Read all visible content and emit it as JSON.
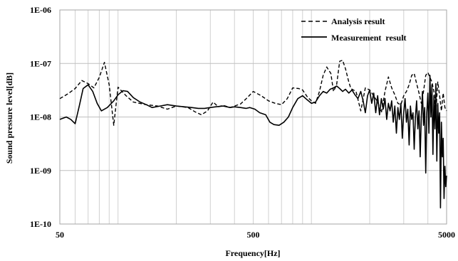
{
  "chart_data": {
    "type": "line",
    "title": "",
    "xlabel": "Frequency[Hz]",
    "ylabel": "Sound pressure level[dB]",
    "xscale": "log",
    "yscale": "log",
    "xlim": [
      50,
      5000
    ],
    "ylim": [
      1e-10,
      1e-06
    ],
    "x_ticks": [
      {
        "value": 50,
        "label": "50"
      },
      {
        "value": 500,
        "label": "500"
      },
      {
        "value": 5000,
        "label": "5000"
      }
    ],
    "y_ticks": [
      {
        "value": 1e-06,
        "label": "1E-06"
      },
      {
        "value": 1e-07,
        "label": "1E-07"
      },
      {
        "value": 1e-08,
        "label": "1E-08"
      },
      {
        "value": 1e-09,
        "label": "1E-09"
      },
      {
        "value": 1e-10,
        "label": "1E-10"
      }
    ],
    "x_gridlines": [
      60,
      70,
      80,
      90,
      100,
      200,
      300,
      400,
      500,
      600,
      700,
      800,
      900,
      1000,
      2000,
      3000,
      4000,
      5000
    ],
    "grid": true,
    "legend_position": "top-right",
    "series": [
      {
        "name": "Analysis result",
        "style": "dashed",
        "color": "#000000",
        "points": [
          [
            50,
            2.2e-08
          ],
          [
            55,
            2.7e-08
          ],
          [
            60,
            3.4e-08
          ],
          [
            65,
            4.8e-08
          ],
          [
            70,
            4.2e-08
          ],
          [
            75,
            3.5e-08
          ],
          [
            80,
            5.5e-08
          ],
          [
            85,
            1.05e-07
          ],
          [
            90,
            4e-08
          ],
          [
            95,
            7e-09
          ],
          [
            100,
            3.6e-08
          ],
          [
            110,
            2.5e-08
          ],
          [
            120,
            1.9e-08
          ],
          [
            140,
            1.7e-08
          ],
          [
            160,
            1.6e-08
          ],
          [
            180,
            1.4e-08
          ],
          [
            200,
            1.6e-08
          ],
          [
            230,
            1.5e-08
          ],
          [
            250,
            1.25e-08
          ],
          [
            270,
            1.1e-08
          ],
          [
            290,
            1.3e-08
          ],
          [
            310,
            1.9e-08
          ],
          [
            330,
            1.55e-08
          ],
          [
            350,
            1.65e-08
          ],
          [
            380,
            1.5e-08
          ],
          [
            400,
            1.6e-08
          ],
          [
            430,
            1.75e-08
          ],
          [
            460,
            2.2e-08
          ],
          [
            500,
            3e-08
          ],
          [
            550,
            2.5e-08
          ],
          [
            600,
            2e-08
          ],
          [
            650,
            1.8e-08
          ],
          [
            700,
            1.7e-08
          ],
          [
            750,
            2.2e-08
          ],
          [
            800,
            3.5e-08
          ],
          [
            860,
            3.4e-08
          ],
          [
            900,
            3.2e-08
          ],
          [
            950,
            2.4e-08
          ],
          [
            1000,
            2e-08
          ],
          [
            1050,
            1.8e-08
          ],
          [
            1100,
            3e-08
          ],
          [
            1150,
            6e-08
          ],
          [
            1200,
            8.6e-08
          ],
          [
            1260,
            6.5e-08
          ],
          [
            1300,
            3e-08
          ],
          [
            1350,
            4e-08
          ],
          [
            1400,
            1.1e-07
          ],
          [
            1450,
            1.15e-07
          ],
          [
            1500,
            8e-08
          ],
          [
            1560,
            4.5e-08
          ],
          [
            1600,
            3.4e-08
          ],
          [
            1700,
            3e-08
          ],
          [
            1800,
            1.3e-08
          ],
          [
            1900,
            3.5e-08
          ],
          [
            2000,
            3.2e-08
          ],
          [
            2100,
            2.5e-08
          ],
          [
            2200,
            1.9e-08
          ],
          [
            2300,
            1.2e-08
          ],
          [
            2400,
            3e-08
          ],
          [
            2500,
            5.6e-08
          ],
          [
            2600,
            3.5e-08
          ],
          [
            2700,
            2.6e-08
          ],
          [
            2800,
            1.8e-08
          ],
          [
            2900,
            1.7e-08
          ],
          [
            3000,
            2.5e-08
          ],
          [
            3100,
            3e-08
          ],
          [
            3200,
            4e-08
          ],
          [
            3300,
            6e-08
          ],
          [
            3400,
            6.5e-08
          ],
          [
            3500,
            4.2e-08
          ],
          [
            3600,
            2.8e-08
          ],
          [
            3700,
            1.8e-08
          ],
          [
            3800,
            3e-08
          ],
          [
            3900,
            6e-08
          ],
          [
            4000,
            6.8e-08
          ],
          [
            4100,
            5.5e-08
          ],
          [
            4200,
            4.5e-08
          ],
          [
            4300,
            3e-08
          ],
          [
            4400,
            1.2e-08
          ],
          [
            4500,
            4.5e-08
          ],
          [
            4600,
            2.5e-08
          ],
          [
            4700,
            1.3e-08
          ],
          [
            4800,
            2.8e-08
          ],
          [
            4900,
            1.5e-08
          ],
          [
            5000,
            1.3e-08
          ]
        ]
      },
      {
        "name": "Measurement  result",
        "style": "solid",
        "color": "#000000",
        "points": [
          [
            50,
            9e-09
          ],
          [
            54,
            1e-08
          ],
          [
            57,
            9e-09
          ],
          [
            60,
            7.5e-09
          ],
          [
            63,
            1.6e-08
          ],
          [
            66,
            3.4e-08
          ],
          [
            70,
            4e-08
          ],
          [
            74,
            3e-08
          ],
          [
            78,
            1.8e-08
          ],
          [
            82,
            1.3e-08
          ],
          [
            88,
            1.5e-08
          ],
          [
            95,
            2e-08
          ],
          [
            100,
            2.6e-08
          ],
          [
            106,
            3.1e-08
          ],
          [
            112,
            3e-08
          ],
          [
            120,
            2.3e-08
          ],
          [
            130,
            1.9e-08
          ],
          [
            140,
            1.7e-08
          ],
          [
            150,
            1.5e-08
          ],
          [
            165,
            1.6e-08
          ],
          [
            180,
            1.7e-08
          ],
          [
            200,
            1.6e-08
          ],
          [
            220,
            1.55e-08
          ],
          [
            240,
            1.5e-08
          ],
          [
            260,
            1.45e-08
          ],
          [
            280,
            1.45e-08
          ],
          [
            300,
            1.5e-08
          ],
          [
            320,
            1.55e-08
          ],
          [
            350,
            1.6e-08
          ],
          [
            380,
            1.5e-08
          ],
          [
            400,
            1.55e-08
          ],
          [
            430,
            1.5e-08
          ],
          [
            460,
            1.45e-08
          ],
          [
            480,
            1.5e-08
          ],
          [
            510,
            1.4e-08
          ],
          [
            540,
            1.2e-08
          ],
          [
            580,
            1.1e-08
          ],
          [
            610,
            8e-09
          ],
          [
            640,
            7.2e-09
          ],
          [
            680,
            7e-09
          ],
          [
            720,
            8e-09
          ],
          [
            760,
            1e-08
          ],
          [
            800,
            1.5e-08
          ],
          [
            850,
            2.2e-08
          ],
          [
            900,
            2.5e-08
          ],
          [
            950,
            2.1e-08
          ],
          [
            1000,
            1.8e-08
          ],
          [
            1050,
            1.9e-08
          ],
          [
            1100,
            2.5e-08
          ],
          [
            1150,
            3e-08
          ],
          [
            1200,
            2.8e-08
          ],
          [
            1250,
            3.3e-08
          ],
          [
            1300,
            3.5e-08
          ],
          [
            1350,
            3.8e-08
          ],
          [
            1400,
            3.4e-08
          ],
          [
            1450,
            3e-08
          ],
          [
            1500,
            3.3e-08
          ],
          [
            1560,
            2.8e-08
          ],
          [
            1620,
            3.2e-08
          ],
          [
            1680,
            2.6e-08
          ],
          [
            1740,
            2.2e-08
          ],
          [
            1800,
            3e-08
          ],
          [
            1850,
            2e-08
          ],
          [
            1900,
            1.2e-08
          ],
          [
            1950,
            2.5e-08
          ],
          [
            2000,
            3.2e-08
          ],
          [
            2050,
            1.8e-08
          ],
          [
            2100,
            2.8e-08
          ],
          [
            2150,
            1.2e-08
          ],
          [
            2200,
            2.5e-08
          ],
          [
            2250,
            1.1e-08
          ],
          [
            2300,
            2.2e-08
          ],
          [
            2350,
            1.4e-08
          ],
          [
            2400,
            2.2e-08
          ],
          [
            2450,
            9e-09
          ],
          [
            2500,
            1.8e-08
          ],
          [
            2550,
            1.3e-08
          ],
          [
            2600,
            2e-08
          ],
          [
            2650,
            8e-09
          ],
          [
            2700,
            1.6e-08
          ],
          [
            2750,
            5e-09
          ],
          [
            2800,
            1.5e-08
          ],
          [
            2850,
            9e-09
          ],
          [
            2900,
            1.8e-08
          ],
          [
            2950,
            4e-09
          ],
          [
            3000,
            1.2e-08
          ],
          [
            3050,
            2.2e-08
          ],
          [
            3100,
            8e-09
          ],
          [
            3150,
            1.4e-08
          ],
          [
            3200,
            3e-09
          ],
          [
            3250,
            1.6e-08
          ],
          [
            3300,
            9e-09
          ],
          [
            3350,
            1.2e-08
          ],
          [
            3400,
            2.5e-09
          ],
          [
            3450,
            1e-08
          ],
          [
            3500,
            2e-08
          ],
          [
            3550,
            6e-09
          ],
          [
            3600,
            1.3e-08
          ],
          [
            3650,
            1.8e-09
          ],
          [
            3700,
            1e-08
          ],
          [
            3750,
            3e-08
          ],
          [
            3800,
            7e-09
          ],
          [
            3850,
            1.5e-08
          ],
          [
            3900,
            9e-10
          ],
          [
            3950,
            1.2e-08
          ],
          [
            4000,
            2.8e-08
          ],
          [
            4050,
            5e-09
          ],
          [
            4100,
            6e-08
          ],
          [
            4150,
            1e-08
          ],
          [
            4200,
            4e-08
          ],
          [
            4250,
            2e-09
          ],
          [
            4300,
            2.5e-08
          ],
          [
            4350,
            6e-09
          ],
          [
            4400,
            4.2e-08
          ],
          [
            4450,
            1.5e-09
          ],
          [
            4500,
            1.8e-08
          ],
          [
            4550,
            5e-09
          ],
          [
            4600,
            1.2e-08
          ],
          [
            4650,
            2e-10
          ],
          [
            4700,
            8e-09
          ],
          [
            4750,
            1.8e-09
          ],
          [
            4800,
            4e-09
          ],
          [
            4850,
            3e-10
          ],
          [
            4900,
            1.2e-09
          ],
          [
            4950,
            5e-10
          ],
          [
            5000,
            8e-10
          ]
        ]
      }
    ]
  }
}
